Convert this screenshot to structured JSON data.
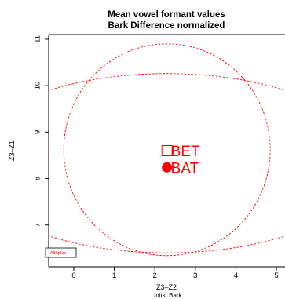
{
  "chart_data": {
    "type": "scatter",
    "title": "Mean vowel formant values",
    "subtitle": "Bark Difference normalized",
    "xlabel": "Z3–Z2",
    "xnote": "Units: Bark",
    "ylabel": "Z3–Z1",
    "xlim": [
      -0.8,
      5.2
    ],
    "ylim": [
      6.1,
      11.1
    ],
    "x_ticks": [
      0,
      1,
      2,
      3,
      4,
      5
    ],
    "y_ticks": [
      7,
      8,
      9,
      10,
      11
    ],
    "color": "#ff0000",
    "legend": {
      "label": "AllSpkrs",
      "position": "bottom-left"
    },
    "points": [
      {
        "label": "BET",
        "x": 2.3,
        "y": 8.6,
        "marker": "open-square"
      },
      {
        "label": "BAT",
        "x": 2.3,
        "y": 8.24,
        "marker": "filled-circle"
      }
    ],
    "ellipses": [
      {
        "cx": 2.3,
        "cy": 8.62,
        "rx": 2.6,
        "ry": 2.28
      },
      {
        "cx": 2.3,
        "cy": 8.33,
        "rx": 5.1,
        "ry": 1.93
      }
    ]
  }
}
